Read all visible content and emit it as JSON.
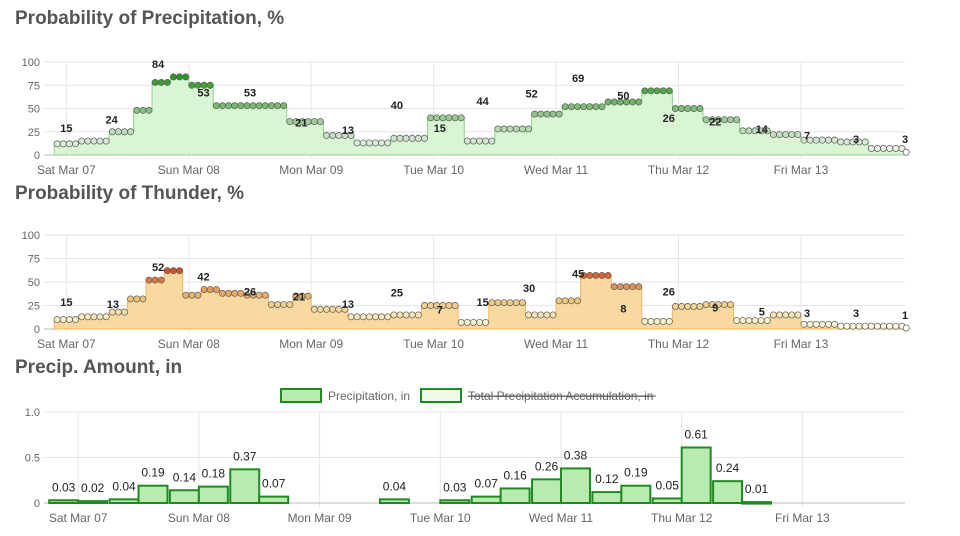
{
  "x_labels": [
    "Sat Mar 07",
    "Sun Mar 08",
    "Mon Mar 09",
    "Tue Mar 10",
    "Wed Mar 11",
    "Thu Mar 12",
    "Fri Mar 13"
  ],
  "colors": {
    "precip_fill": "#d9f5d3",
    "precip_line": "#8fd28a",
    "thunder_fill": "#fad9a0",
    "thunder_line": "#f0b865",
    "bar_fill": "#b7ebb0",
    "bar_stroke": "#1f8a1f",
    "grid": "#e6e6e6",
    "axis": "#bbbbbb"
  },
  "chart_data": [
    {
      "id": "precip",
      "type": "line",
      "title": "Probability of Precipitation, %",
      "ylim": [
        0,
        100
      ],
      "yticks": [
        0,
        25,
        50,
        75,
        100
      ],
      "x_range": [
        -0.15,
        6.85
      ],
      "steps": [
        [
          -0.1,
          12
        ],
        [
          0.1,
          15
        ],
        [
          0.35,
          25
        ],
        [
          0.55,
          48
        ],
        [
          0.7,
          78
        ],
        [
          0.85,
          84
        ],
        [
          1.0,
          75
        ],
        [
          1.2,
          53
        ],
        [
          1.55,
          53
        ],
        [
          1.8,
          36
        ],
        [
          2.1,
          21
        ],
        [
          2.35,
          13
        ],
        [
          2.65,
          18
        ],
        [
          2.95,
          40
        ],
        [
          3.25,
          15
        ],
        [
          3.5,
          28
        ],
        [
          3.8,
          44
        ],
        [
          4.05,
          52
        ],
        [
          4.4,
          57
        ],
        [
          4.7,
          69
        ],
        [
          4.95,
          50
        ],
        [
          5.2,
          38
        ],
        [
          5.5,
          26
        ],
        [
          5.75,
          22
        ],
        [
          6.0,
          16
        ],
        [
          6.3,
          14
        ],
        [
          6.55,
          7
        ],
        [
          6.85,
          3
        ]
      ],
      "labels": [
        {
          "x": 0.0,
          "value": 15
        },
        {
          "x": 0.37,
          "value": 24
        },
        {
          "x": 0.75,
          "value": 84
        },
        {
          "x": 1.12,
          "value": 53
        },
        {
          "x": 1.5,
          "value": 53
        },
        {
          "x": 1.92,
          "value": 21
        },
        {
          "x": 2.3,
          "value": 13
        },
        {
          "x": 2.7,
          "value": 40
        },
        {
          "x": 3.05,
          "value": 15
        },
        {
          "x": 3.4,
          "value": 44
        },
        {
          "x": 3.8,
          "value": 52
        },
        {
          "x": 4.18,
          "value": 69
        },
        {
          "x": 4.55,
          "value": 50
        },
        {
          "x": 4.92,
          "value": 26
        },
        {
          "x": 5.3,
          "value": 22
        },
        {
          "x": 5.68,
          "value": 14
        },
        {
          "x": 6.05,
          "value": 7
        },
        {
          "x": 6.45,
          "value": 3
        },
        {
          "x": 6.85,
          "value": 3
        }
      ]
    },
    {
      "id": "thunder",
      "type": "line",
      "title": "Probability of Thunder, %",
      "ylim": [
        0,
        100
      ],
      "yticks": [
        0,
        25,
        50,
        75,
        100
      ],
      "x_range": [
        -0.15,
        6.85
      ],
      "steps": [
        [
          -0.1,
          10
        ],
        [
          0.1,
          13
        ],
        [
          0.35,
          18
        ],
        [
          0.5,
          32
        ],
        [
          0.65,
          52
        ],
        [
          0.8,
          62
        ],
        [
          0.95,
          36
        ],
        [
          1.1,
          42
        ],
        [
          1.25,
          38
        ],
        [
          1.45,
          36
        ],
        [
          1.65,
          26
        ],
        [
          1.85,
          35
        ],
        [
          2.0,
          21
        ],
        [
          2.3,
          13
        ],
        [
          2.65,
          15
        ],
        [
          2.9,
          25
        ],
        [
          3.2,
          7
        ],
        [
          3.45,
          28
        ],
        [
          3.75,
          15
        ],
        [
          4.0,
          30
        ],
        [
          4.2,
          57
        ],
        [
          4.45,
          45
        ],
        [
          4.7,
          8
        ],
        [
          4.95,
          24
        ],
        [
          5.2,
          26
        ],
        [
          5.45,
          9
        ],
        [
          5.75,
          15
        ],
        [
          6.0,
          5
        ],
        [
          6.3,
          3
        ],
        [
          6.85,
          1
        ]
      ],
      "labels": [
        {
          "x": 0.0,
          "value": 15
        },
        {
          "x": 0.38,
          "value": 13
        },
        {
          "x": 0.75,
          "value": 52
        },
        {
          "x": 1.12,
          "value": 42
        },
        {
          "x": 1.5,
          "value": 26
        },
        {
          "x": 1.9,
          "value": 21
        },
        {
          "x": 2.3,
          "value": 13
        },
        {
          "x": 2.7,
          "value": 25
        },
        {
          "x": 3.05,
          "value": 7
        },
        {
          "x": 3.4,
          "value": 15
        },
        {
          "x": 3.78,
          "value": 30
        },
        {
          "x": 4.18,
          "value": 45
        },
        {
          "x": 4.55,
          "value": 8
        },
        {
          "x": 4.92,
          "value": 26
        },
        {
          "x": 5.3,
          "value": 9
        },
        {
          "x": 5.68,
          "value": 5
        },
        {
          "x": 6.05,
          "value": 3
        },
        {
          "x": 6.45,
          "value": 3
        },
        {
          "x": 6.85,
          "value": 1
        }
      ]
    },
    {
      "id": "amount",
      "type": "bar",
      "title": "Precip. Amount, in",
      "ylim": [
        0,
        1.0
      ],
      "yticks": [
        0,
        0.5,
        1.0
      ],
      "ytick_labels": [
        "0",
        "0.5",
        "1.0"
      ],
      "x_range": [
        -0.25,
        6.85
      ],
      "bar_width": 0.24,
      "legend": [
        "Precipitation, in",
        "Total Precipitation Accumulation, in"
      ],
      "bars": [
        {
          "x": -0.12,
          "value": 0.03
        },
        {
          "x": 0.12,
          "value": 0.02
        },
        {
          "x": 0.38,
          "value": 0.04
        },
        {
          "x": 0.62,
          "value": 0.19
        },
        {
          "x": 0.88,
          "value": 0.14
        },
        {
          "x": 1.12,
          "value": 0.18
        },
        {
          "x": 1.38,
          "value": 0.37
        },
        {
          "x": 1.62,
          "value": 0.07
        },
        {
          "x": 2.62,
          "value": 0.04
        },
        {
          "x": 3.12,
          "value": 0.03
        },
        {
          "x": 3.38,
          "value": 0.07
        },
        {
          "x": 3.62,
          "value": 0.16
        },
        {
          "x": 3.88,
          "value": 0.26
        },
        {
          "x": 4.12,
          "value": 0.38
        },
        {
          "x": 4.38,
          "value": 0.12
        },
        {
          "x": 4.62,
          "value": 0.19
        },
        {
          "x": 4.88,
          "value": 0.05
        },
        {
          "x": 5.12,
          "value": 0.61
        },
        {
          "x": 5.38,
          "value": 0.24
        },
        {
          "x": 5.62,
          "value": 0.01
        }
      ]
    }
  ]
}
